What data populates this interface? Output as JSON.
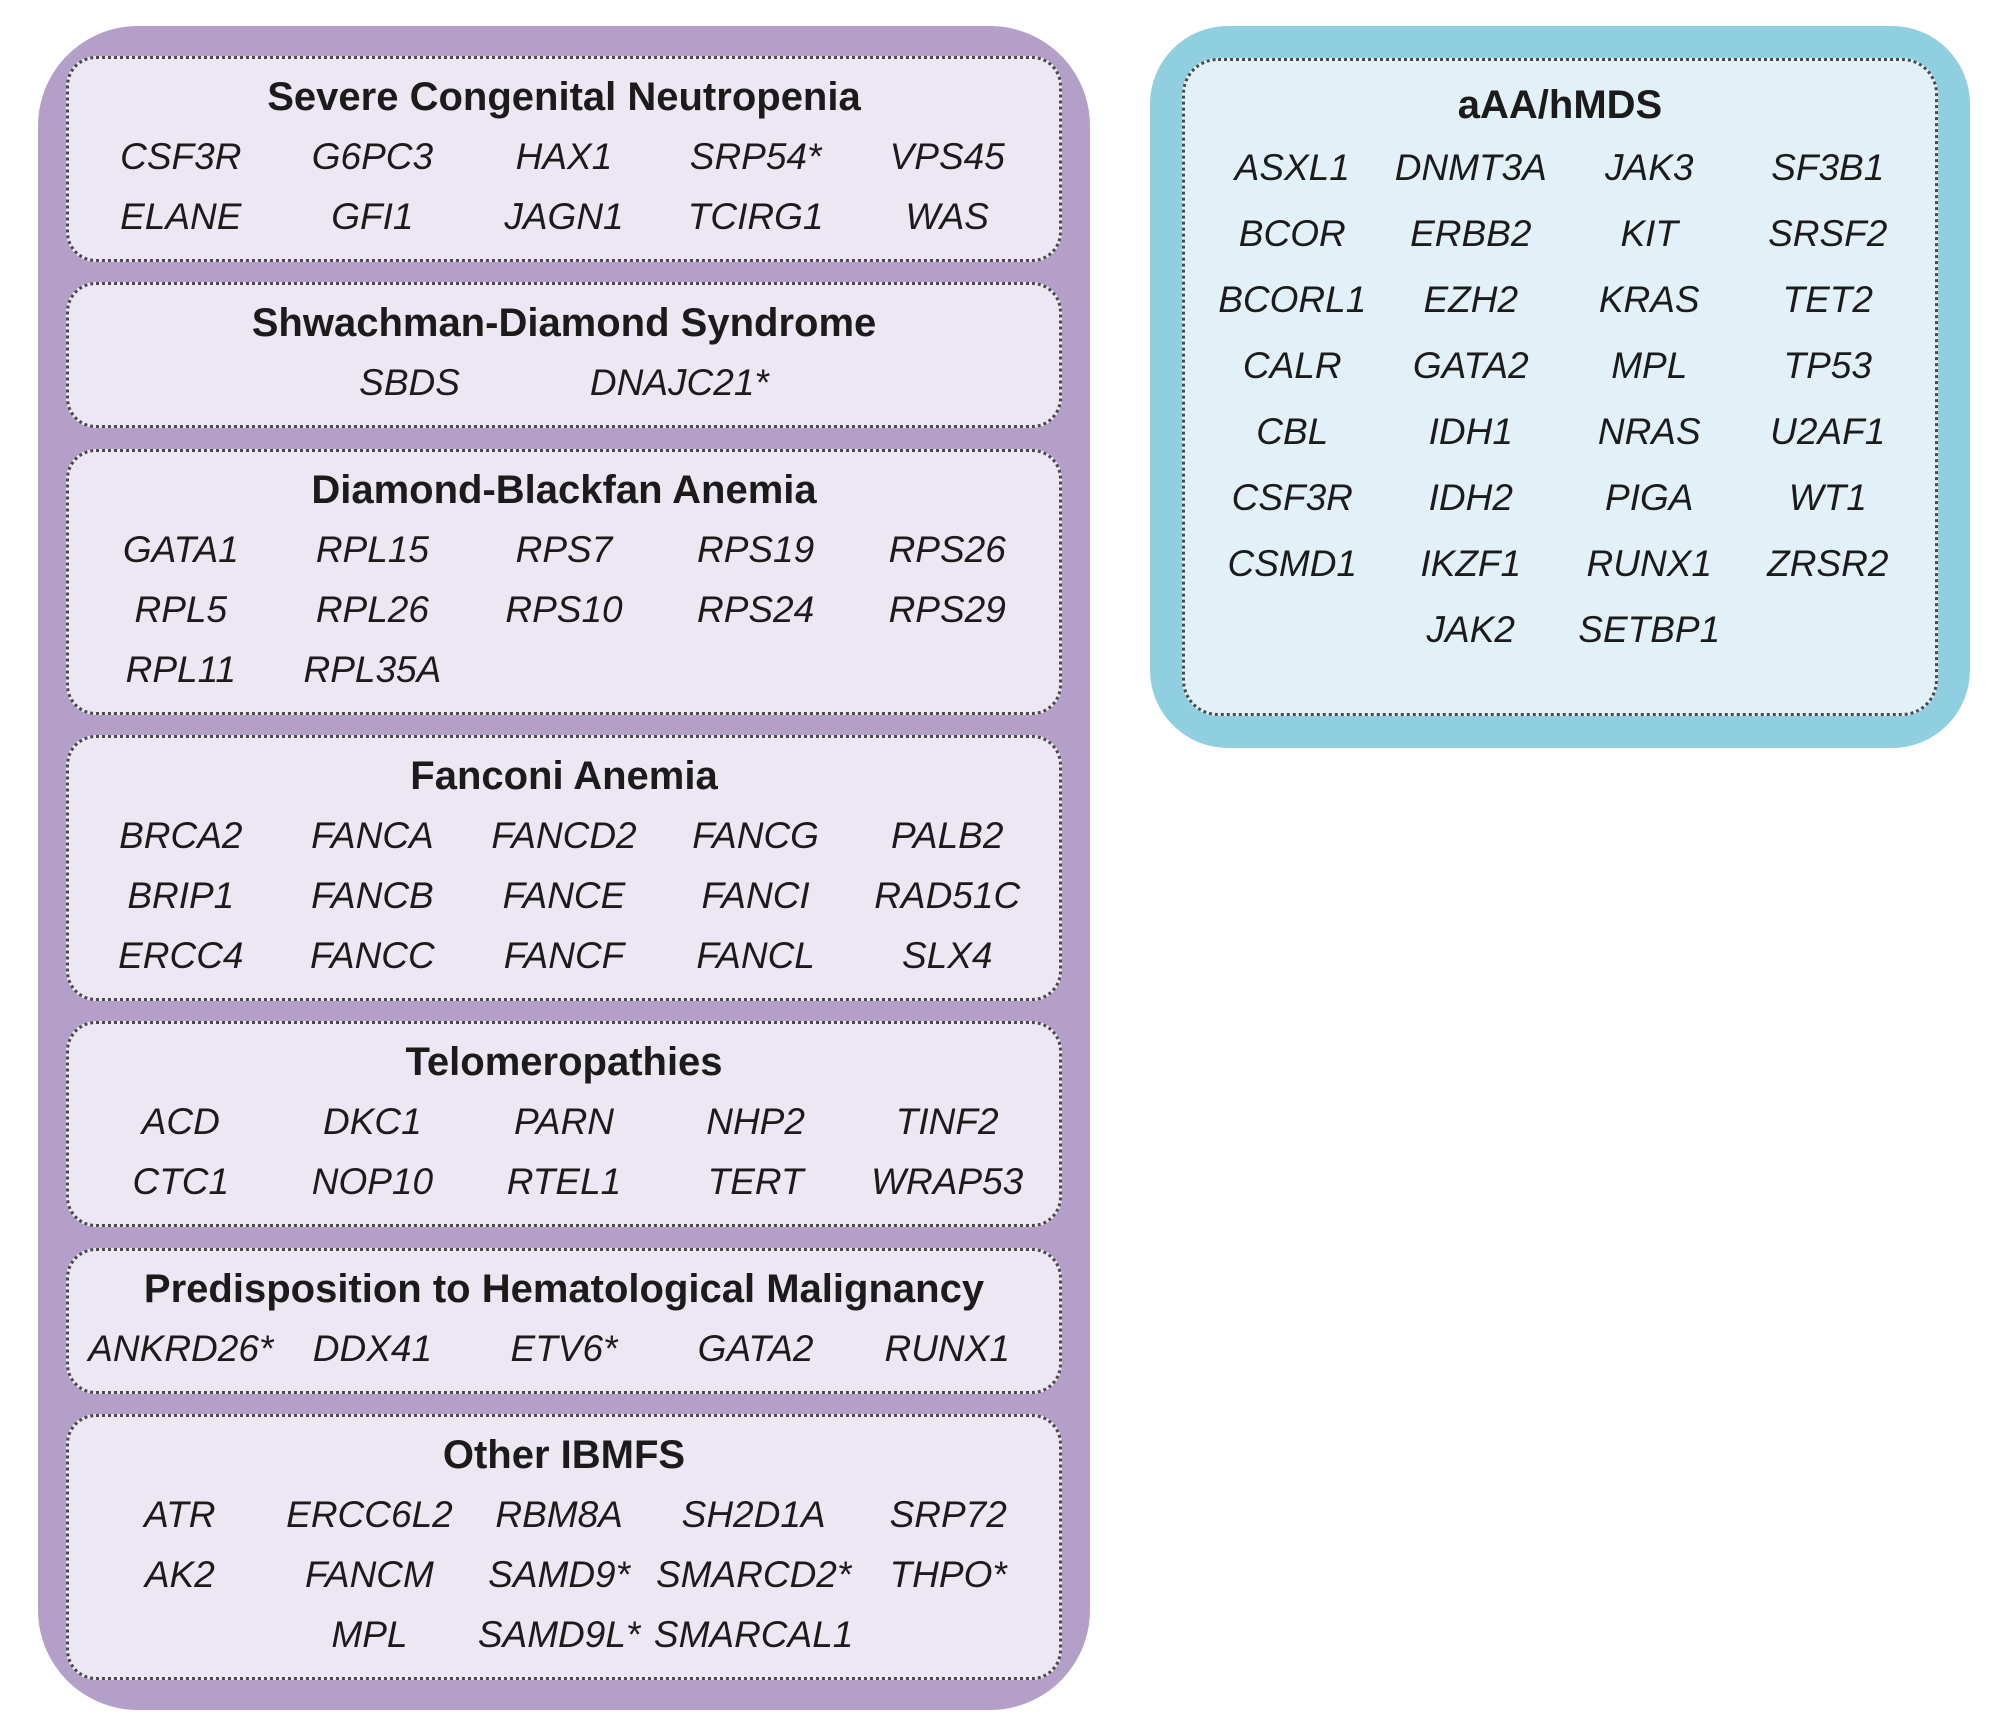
{
  "figure": {
    "left_panel": {
      "sections": [
        {
          "title": "Severe Congenital Neutropenia",
          "layout": "grid5",
          "genes": [
            "CSF3R",
            "G6PC3",
            "HAX1",
            "SRP54*",
            "VPS45",
            "ELANE",
            "GFI1",
            "JAGN1",
            "TCIRG1",
            "WAS"
          ]
        },
        {
          "title": "Shwachman-Diamond Syndrome",
          "layout": "center",
          "genes": [
            "SBDS",
            "DNAJC21*"
          ]
        },
        {
          "title": "Diamond-Blackfan Anemia",
          "layout": "grid5",
          "genes": [
            "GATA1",
            "RPL15",
            "RPS7",
            "RPS19",
            "RPS26",
            "RPL5",
            "RPL26",
            "RPS10",
            "RPS24",
            "RPS29",
            "RPL11",
            "RPL35A",
            "",
            "",
            ""
          ]
        },
        {
          "title": "Fanconi Anemia",
          "layout": "grid5",
          "genes": [
            "BRCA2",
            "FANCA",
            "FANCD2",
            "FANCG",
            "PALB2",
            "BRIP1",
            "FANCB",
            "FANCE",
            "FANCI",
            "RAD51C",
            "ERCC4",
            "FANCC",
            "FANCF",
            "FANCL",
            "SLX4"
          ]
        },
        {
          "title": "Telomeropathies",
          "layout": "grid5",
          "genes": [
            "ACD",
            "DKC1",
            "PARN",
            "NHP2",
            "TINF2",
            "CTC1",
            "NOP10",
            "RTEL1",
            "TERT",
            "WRAP53"
          ]
        },
        {
          "title": "Predisposition to Hematological Malignancy",
          "layout": "grid5",
          "genes": [
            "ANKRD26*",
            "DDX41",
            "ETV6*",
            "GATA2",
            "RUNX1"
          ]
        },
        {
          "title": "Other IBMFS",
          "layout": "grid5",
          "genes": [
            "ATR",
            "ERCC6L2",
            "RBM8A",
            "SH2D1A",
            "SRP72",
            "AK2",
            "FANCM",
            "SAMD9*",
            "SMARCD2*",
            "THPO*",
            "",
            "MPL",
            "SAMD9L*",
            "SMARCAL1",
            ""
          ]
        }
      ]
    },
    "right_panel": {
      "title": "aAA/hMDS",
      "layout": "grid4",
      "genes": [
        "ASXL1",
        "DNMT3A",
        "JAK3",
        "SF3B1",
        "BCOR",
        "ERBB2",
        "KIT",
        "SRSF2",
        "BCORL1",
        "EZH2",
        "KRAS",
        "TET2",
        "CALR",
        "GATA2",
        "MPL",
        "TP53",
        "CBL",
        "IDH1",
        "NRAS",
        "U2AF1",
        "CSF3R",
        "IDH2",
        "PIGA",
        "WT1",
        "CSMD1",
        "IKZF1",
        "RUNX1",
        "ZRSR2",
        "",
        "JAK2",
        "SETBP1",
        ""
      ]
    },
    "colors": {
      "left_panel_bg": "#b39fc7",
      "left_section_bg": "#ece7f2",
      "right_panel_bg": "#8fcfdf",
      "right_inner_bg": "#e2f1f7",
      "border": "#4a4a4a",
      "text": "#1b1b1b"
    }
  }
}
